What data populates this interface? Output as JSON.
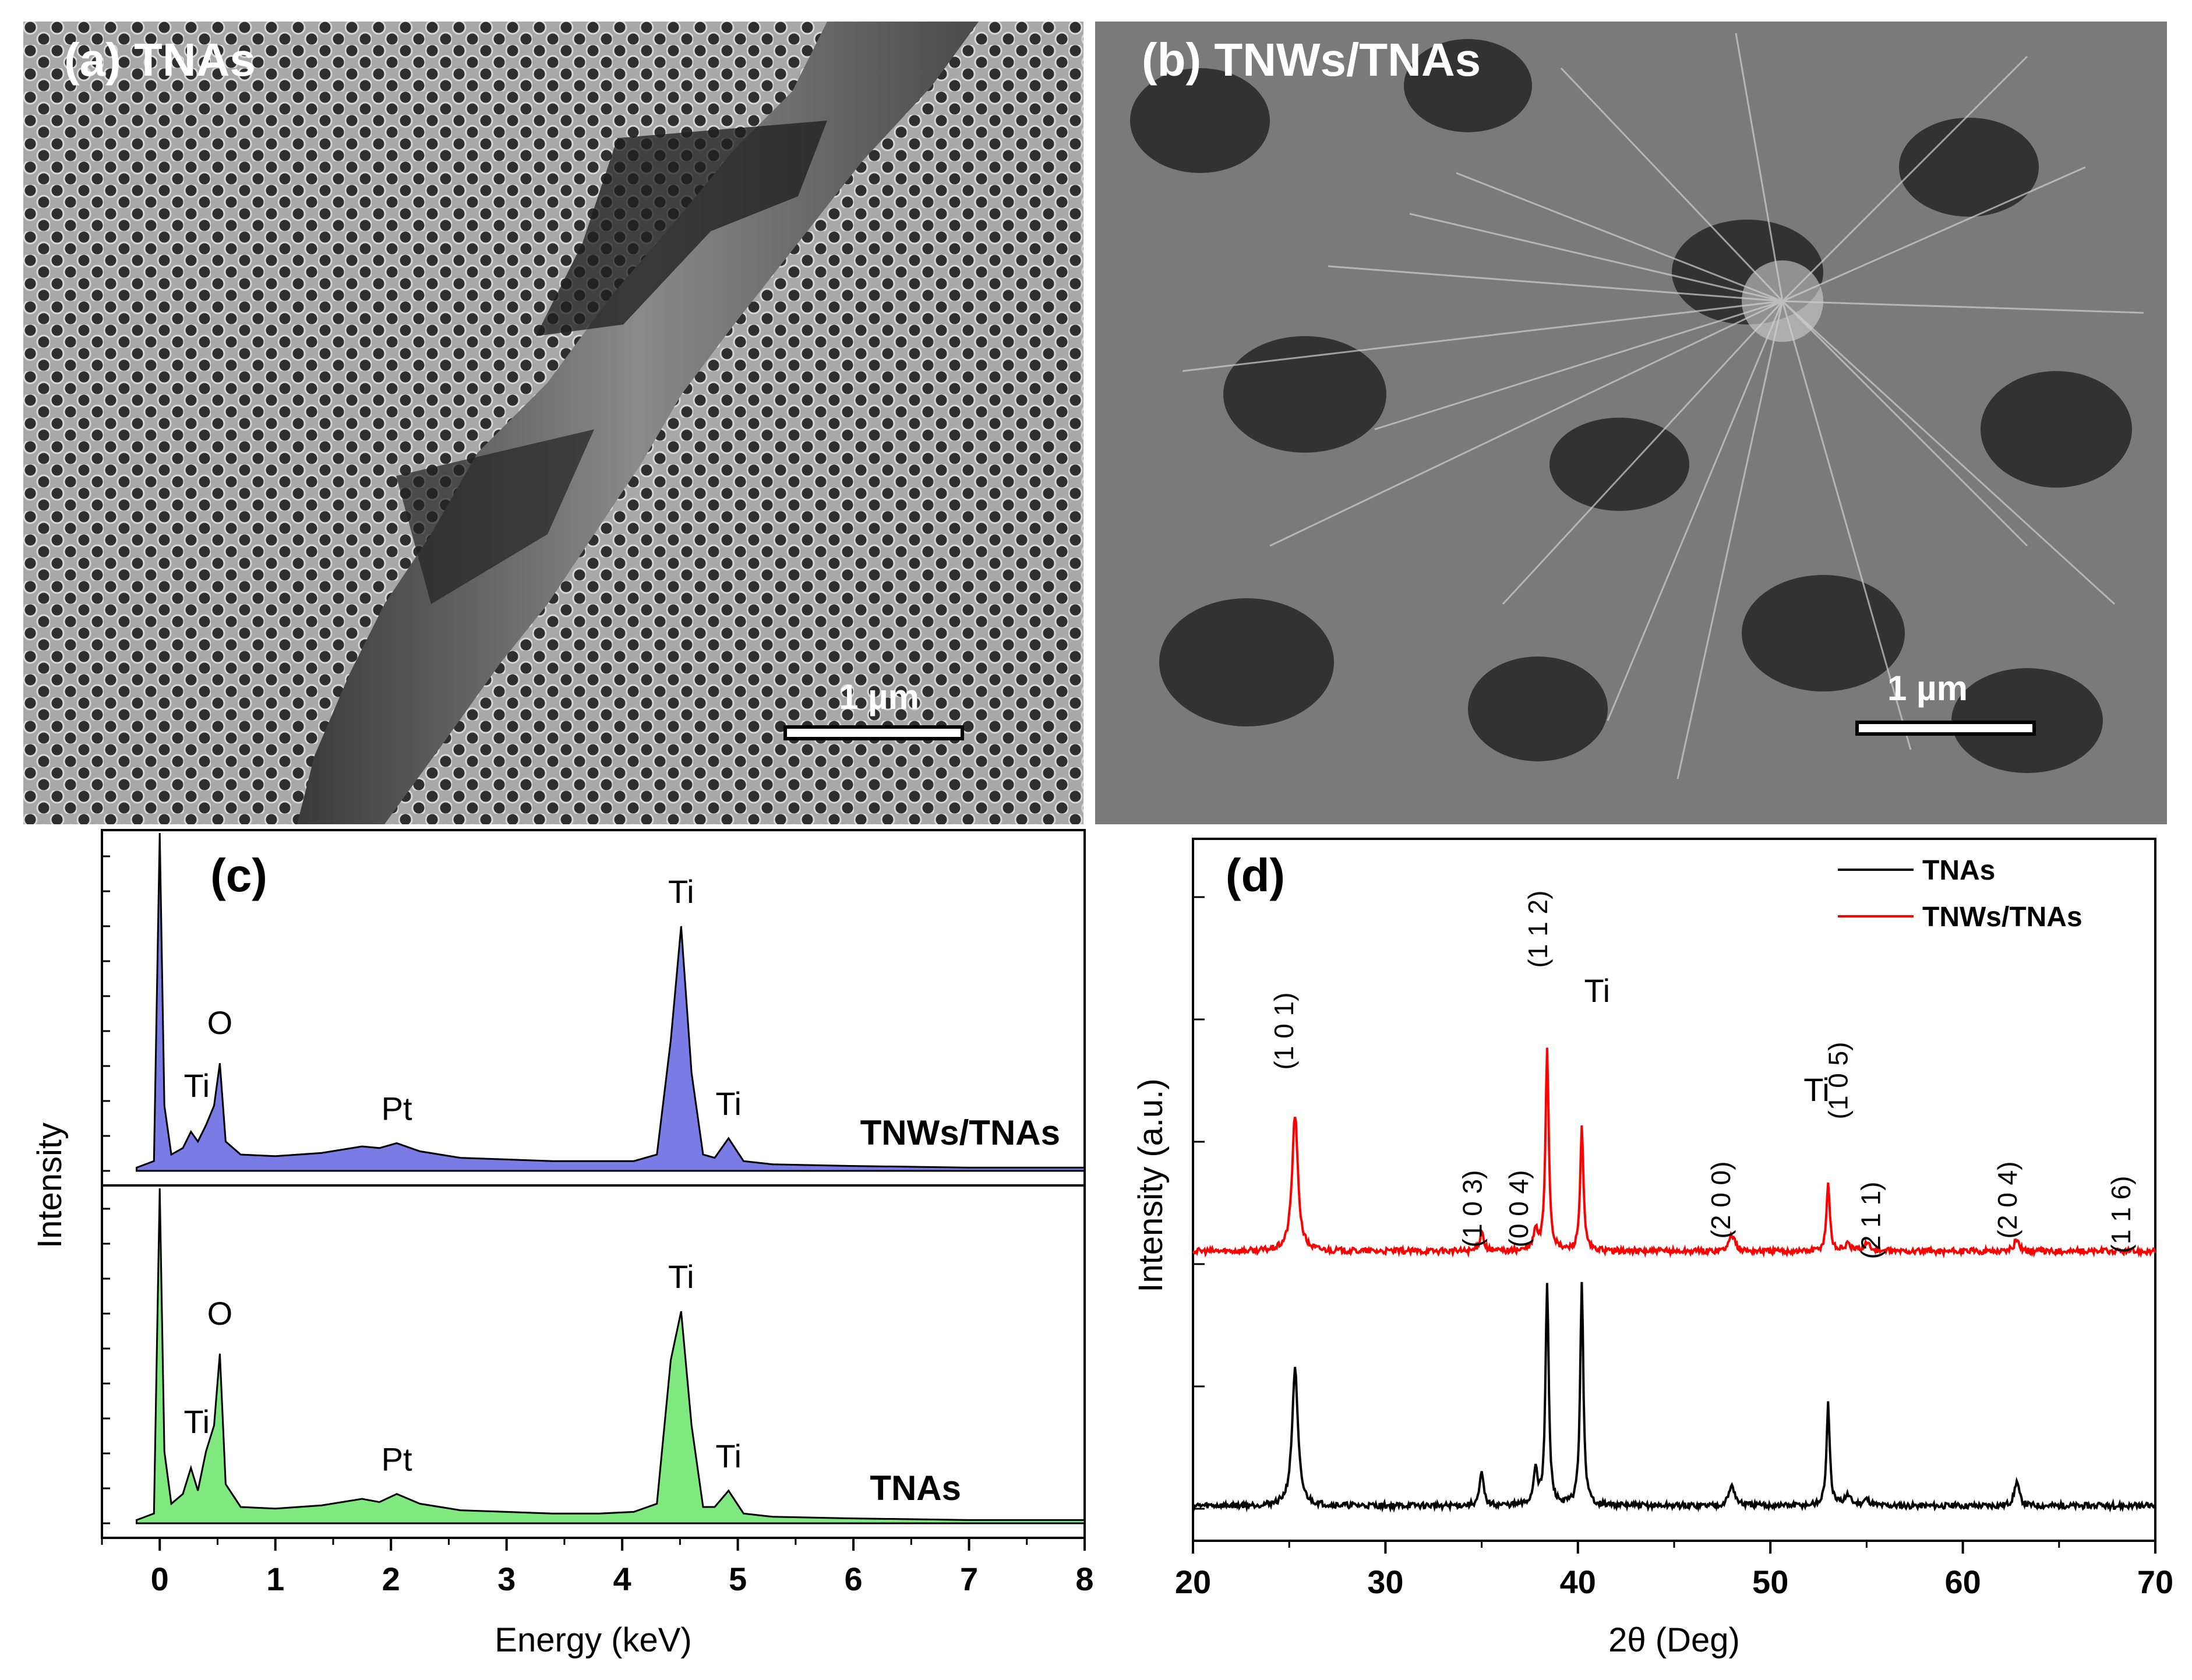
{
  "panel_a": {
    "label": "(a) TNAs",
    "scale_bar": "1 µm"
  },
  "panel_b": {
    "label": "(b) TNWs/TNAs",
    "scale_bar": "1 µm"
  },
  "colors": {
    "eds_top_fill": "#7b7be6",
    "eds_bottom_fill": "#7fe87f",
    "xrd_tnas": "#000000",
    "xrd_tnws": "#ff0000"
  },
  "chart_data": [
    {
      "type": "area",
      "panel": "(c)",
      "xlabel": "Energy (keV)",
      "ylabel": "Intensity",
      "xlim": [
        -0.5,
        8
      ],
      "xticks": [
        0,
        1,
        2,
        3,
        4,
        5,
        6,
        7,
        8
      ],
      "grid": false,
      "series": [
        {
          "name": "TNWs/TNAs",
          "x": [
            -0.2,
            -0.05,
            0,
            0.04,
            0.1,
            0.2,
            0.27,
            0.33,
            0.4,
            0.47,
            0.52,
            0.57,
            0.7,
            1.0,
            1.4,
            1.75,
            1.9,
            2.05,
            2.25,
            2.6,
            3.0,
            3.4,
            3.8,
            4.1,
            4.3,
            4.42,
            4.51,
            4.6,
            4.7,
            4.8,
            4.92,
            5.05,
            5.3,
            6.0,
            7.0,
            8.0
          ],
          "y": [
            0.01,
            0.03,
            1.0,
            0.2,
            0.05,
            0.07,
            0.12,
            0.09,
            0.14,
            0.2,
            0.33,
            0.09,
            0.05,
            0.045,
            0.055,
            0.075,
            0.07,
            0.085,
            0.06,
            0.04,
            0.035,
            0.03,
            0.03,
            0.03,
            0.05,
            0.4,
            0.75,
            0.3,
            0.05,
            0.04,
            0.1,
            0.03,
            0.02,
            0.015,
            0.01,
            0.01
          ],
          "labels": [
            {
              "text": "Ti",
              "x": 0.27
            },
            {
              "text": "O",
              "x": 0.52
            },
            {
              "text": "Pt",
              "x": 2.05
            },
            {
              "text": "Ti",
              "x": 4.51
            },
            {
              "text": "Ti",
              "x": 4.92
            }
          ]
        },
        {
          "name": "TNAs",
          "x": [
            -0.2,
            -0.05,
            0,
            0.04,
            0.1,
            0.2,
            0.27,
            0.33,
            0.4,
            0.47,
            0.52,
            0.57,
            0.7,
            1.0,
            1.4,
            1.75,
            1.9,
            2.05,
            2.25,
            2.6,
            3.0,
            3.4,
            3.8,
            4.1,
            4.3,
            4.42,
            4.51,
            4.6,
            4.7,
            4.8,
            4.92,
            5.05,
            5.3,
            6.0,
            7.0,
            8.0
          ],
          "y": [
            0.01,
            0.03,
            1.0,
            0.22,
            0.06,
            0.09,
            0.17,
            0.1,
            0.22,
            0.3,
            0.52,
            0.12,
            0.05,
            0.045,
            0.055,
            0.075,
            0.065,
            0.09,
            0.06,
            0.04,
            0.035,
            0.03,
            0.03,
            0.035,
            0.06,
            0.5,
            0.65,
            0.3,
            0.05,
            0.05,
            0.1,
            0.03,
            0.02,
            0.015,
            0.01,
            0.01
          ],
          "labels": [
            {
              "text": "Ti",
              "x": 0.27
            },
            {
              "text": "O",
              "x": 0.52
            },
            {
              "text": "Pt",
              "x": 2.05
            },
            {
              "text": "Ti",
              "x": 4.51
            },
            {
              "text": "Ti",
              "x": 4.92
            }
          ]
        }
      ]
    },
    {
      "type": "line",
      "panel": "(d)",
      "xlabel": "2θ (Deg)",
      "ylabel": "Intensity (a.u.)",
      "xlim": [
        20,
        70
      ],
      "xticks": [
        20,
        30,
        40,
        50,
        60,
        70
      ],
      "grid": false,
      "legend": "top-right",
      "peaks_deg": [
        25.3,
        35.0,
        37.8,
        38.4,
        40.2,
        48.0,
        53.0,
        54.0,
        55.0,
        62.8,
        68.8
      ],
      "series": [
        {
          "name": "TNAs",
          "peak_heights": [
            0.67,
            0.16,
            0.18,
            1.08,
            1.08,
            0.1,
            0.5,
            0.05,
            0.03,
            0.12,
            0.0
          ]
        },
        {
          "name": "TNWs/TNAs",
          "peak_heights": [
            0.67,
            0.1,
            0.1,
            1.0,
            0.6,
            0.08,
            0.34,
            0.03,
            0.04,
            0.06,
            0.0
          ]
        }
      ],
      "annotations": [
        "(1 0 1)",
        "(1 0 3)",
        "(0 0 4)",
        "(1 1 2)",
        "Ti",
        "(2 0 0)",
        "Ti",
        "(1 0 5)",
        "(2 1 1)",
        "(2 0 4)",
        "(1 1 6)"
      ]
    }
  ]
}
